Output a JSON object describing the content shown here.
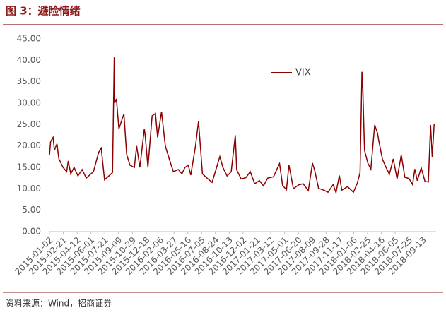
{
  "chart_data": {
    "type": "line",
    "title": "图 3：避险情绪",
    "source": "资料来源：Wind，招商证券",
    "series": [
      {
        "name": "VIX",
        "color": "#8b0000",
        "x": [
          "2015-01-02",
          "2015-01-06",
          "2015-01-15",
          "2015-01-20",
          "2015-01-29",
          "2015-02-05",
          "2015-02-20",
          "2015-03-05",
          "2015-03-11",
          "2015-03-20",
          "2015-04-01",
          "2015-04-15",
          "2015-04-30",
          "2015-05-15",
          "2015-06-01",
          "2015-06-10",
          "2015-06-29",
          "2015-07-08",
          "2015-07-20",
          "2015-08-05",
          "2015-08-18",
          "2015-08-24",
          "2015-08-26",
          "2015-09-01",
          "2015-09-10",
          "2015-09-28",
          "2015-10-08",
          "2015-10-20",
          "2015-11-05",
          "2015-11-13",
          "2015-11-25",
          "2015-12-11",
          "2015-12-14",
          "2015-12-24",
          "2016-01-08",
          "2016-01-20",
          "2016-01-28",
          "2016-02-11",
          "2016-02-25",
          "2016-03-10",
          "2016-03-25",
          "2016-04-12",
          "2016-04-25",
          "2016-05-06",
          "2016-05-18",
          "2016-05-27",
          "2016-06-13",
          "2016-06-24",
          "2016-06-27",
          "2016-07-08",
          "2016-07-25",
          "2016-08-12",
          "2016-09-09",
          "2016-09-20",
          "2016-10-05",
          "2016-10-20",
          "2016-11-04",
          "2016-11-09",
          "2016-11-25",
          "2016-12-12",
          "2016-12-28",
          "2017-01-13",
          "2017-01-30",
          "2017-02-14",
          "2017-03-01",
          "2017-03-22",
          "2017-04-13",
          "2017-04-24",
          "2017-05-08",
          "2017-05-17",
          "2017-06-02",
          "2017-06-20",
          "2017-07-07",
          "2017-07-26",
          "2017-08-10",
          "2017-08-18",
          "2017-09-01",
          "2017-09-20",
          "2017-10-05",
          "2017-10-24",
          "2017-11-03",
          "2017-11-15",
          "2017-11-24",
          "2017-12-15",
          "2018-01-05",
          "2018-01-19",
          "2018-01-29",
          "2018-02-05",
          "2018-02-08",
          "2018-02-14",
          "2018-02-26",
          "2018-03-09",
          "2018-03-23",
          "2018-04-02",
          "2018-04-06",
          "2018-04-20",
          "2018-05-03",
          "2018-05-15",
          "2018-05-29",
          "2018-06-12",
          "2018-06-27",
          "2018-07-10",
          "2018-07-25",
          "2018-08-07",
          "2018-08-15",
          "2018-08-24",
          "2018-09-07",
          "2018-09-21",
          "2018-10-03",
          "2018-10-11",
          "2018-10-17",
          "2018-10-24"
        ],
        "values": [
          17.8,
          21,
          22,
          19,
          20.5,
          17,
          15,
          14,
          16.5,
          13.5,
          15,
          13,
          14.5,
          12.5,
          13.5,
          14,
          18.5,
          19.5,
          12.1,
          13,
          13.8,
          40.7,
          30,
          31,
          24,
          27.5,
          18,
          15.5,
          15,
          20,
          15,
          24,
          22.5,
          15,
          27,
          27.6,
          22,
          28,
          20,
          17,
          14,
          14.5,
          13.5,
          15,
          15.5,
          13.2,
          20,
          25.8,
          23,
          13.5,
          12.5,
          11.5,
          17.5,
          15,
          13,
          14,
          22.5,
          14.4,
          12.3,
          12.6,
          14,
          11.2,
          11.9,
          10.7,
          12.5,
          12.8,
          15.9,
          10.8,
          9.8,
          15.6,
          10,
          10.9,
          11.2,
          9.6,
          16,
          14.3,
          10.1,
          9.7,
          9.2,
          11,
          9.1,
          13.1,
          9.7,
          10.5,
          9.2,
          11.3,
          13.8,
          37.3,
          33.5,
          19,
          16,
          14.6,
          24.9,
          23,
          21.5,
          16.9,
          15,
          13.4,
          17,
          12.3,
          17.9,
          12.7,
          12.4,
          11,
          14.6,
          11.9,
          14.9,
          11.7,
          11.6,
          24.9,
          17.4,
          25.2
        ]
      }
    ],
    "xlim": [
      "2015-01-02",
      "2018-10-31"
    ],
    "xticks": [
      "2015-01-02",
      "2015-02-21",
      "2015-04-12",
      "2015-06-01",
      "2015-07-21",
      "2015-09-09",
      "2015-10-29",
      "2015-12-18",
      "2016-02-06",
      "2016-03-27",
      "2016-05-16",
      "2016-07-05",
      "2016-08-24",
      "2016-10-13",
      "2016-12-02",
      "2017-01-21",
      "2017-03-12",
      "2017-05-01",
      "2017-06-20",
      "2017-08-09",
      "2017-09-28",
      "2017-11-17",
      "2018-01-06",
      "2018-02-25",
      "2018-04-16",
      "2018-06-05",
      "2018-07-25",
      "2018-09-13"
    ],
    "ylim": [
      0,
      45
    ],
    "yticks": [
      {
        "value": 0,
        "label": "0.00"
      },
      {
        "value": 5,
        "label": "5.00"
      },
      {
        "value": 10,
        "label": "10.00"
      },
      {
        "value": 15,
        "label": "15.00"
      },
      {
        "value": 20,
        "label": "20.00"
      },
      {
        "value": 25,
        "label": "25.00"
      },
      {
        "value": 30,
        "label": "30.00"
      },
      {
        "value": 35,
        "label": "35.00"
      },
      {
        "value": 40,
        "label": "40.00"
      },
      {
        "value": 45,
        "label": "45.00"
      }
    ],
    "legend": "top-center"
  }
}
